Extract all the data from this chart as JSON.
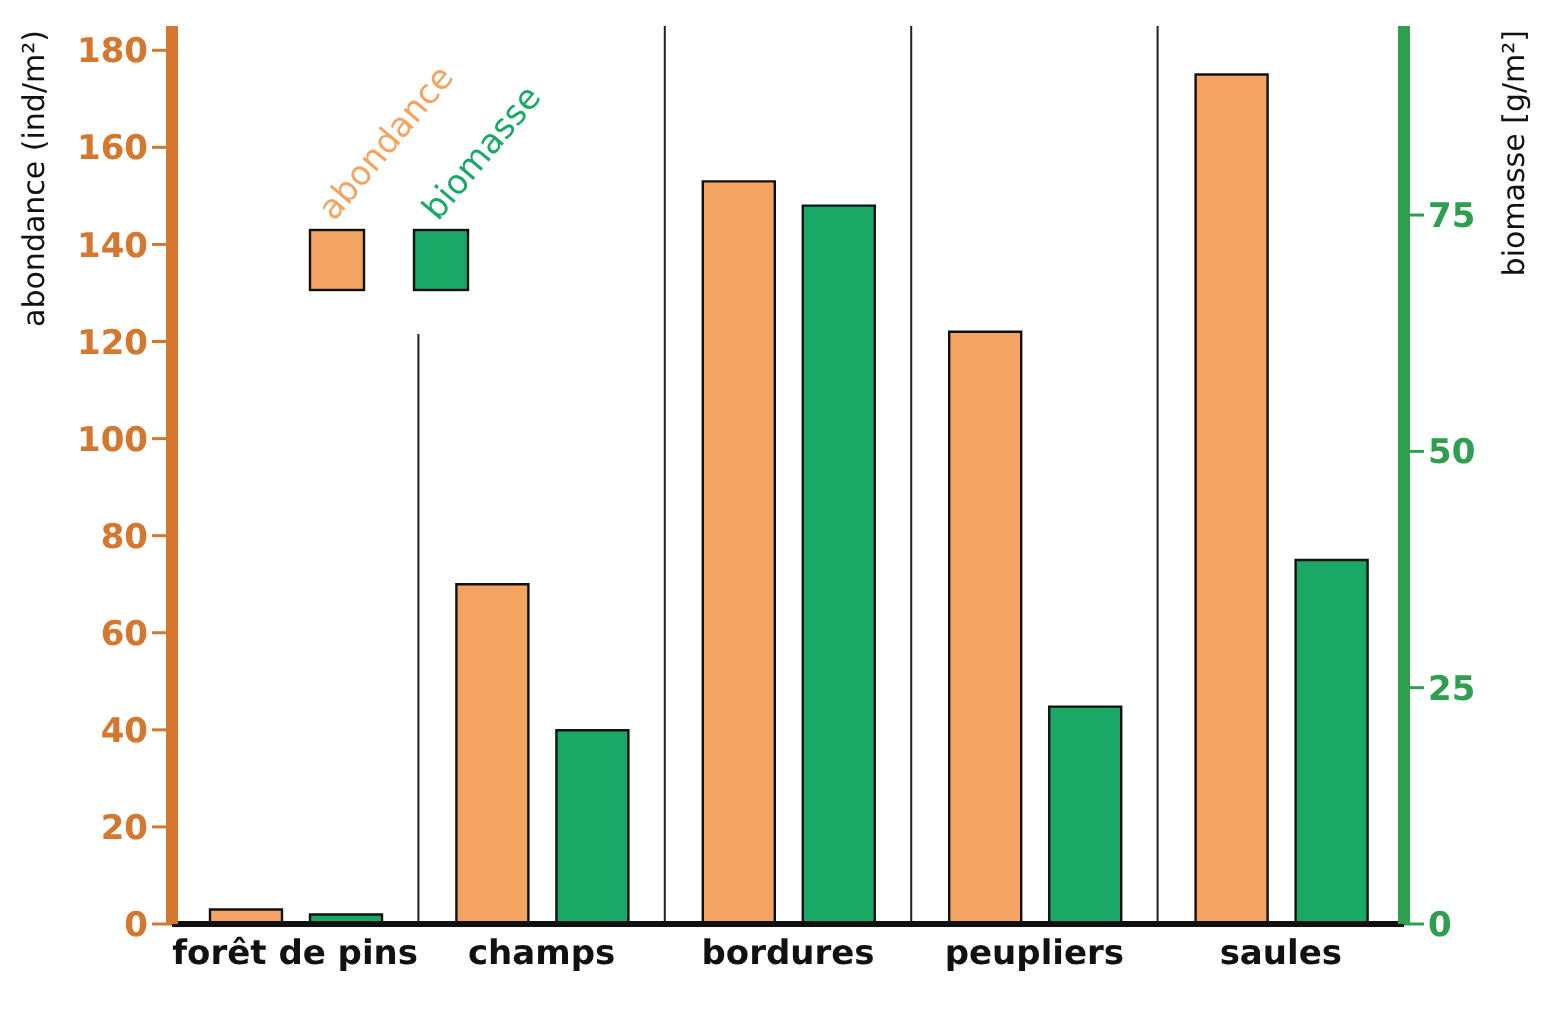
{
  "chart_data": {
    "type": "bar",
    "ylabel": "abondance (ind/m²)",
    "y2label": "biomasse [g/m²]",
    "categories": [
      "forêt de pins",
      "champs",
      "bordures",
      "peupliers",
      "saules"
    ],
    "series": [
      {
        "name": "abondance",
        "color": "#f4a462",
        "values": [
          3,
          70,
          153,
          122,
          175
        ]
      },
      {
        "name": "biomasse",
        "color": "#1aa866",
        "axis": "y2",
        "values": [
          1,
          20.5,
          76,
          23,
          38.5
        ]
      }
    ],
    "ylim": [
      0,
      185
    ],
    "yticks": [
      0,
      20,
      40,
      60,
      80,
      100,
      120,
      140,
      160,
      180
    ],
    "y2lim": [
      0,
      95
    ],
    "y2ticks": [
      0,
      25,
      50,
      75
    ],
    "grid": "x",
    "legend": "top left"
  }
}
